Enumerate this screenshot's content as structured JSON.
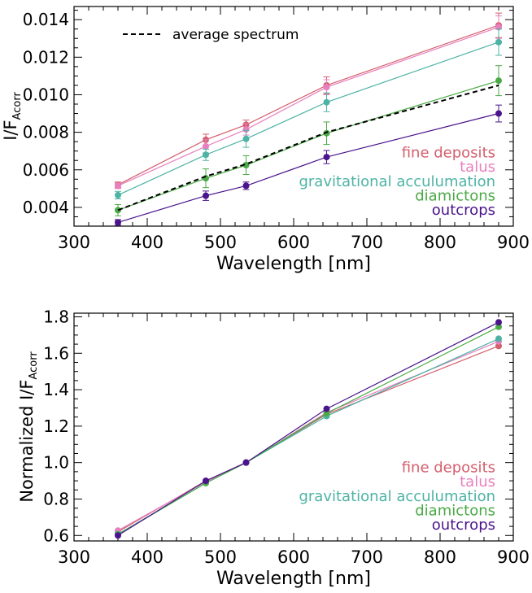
{
  "chart_data": [
    {
      "type": "line",
      "xlabel": "Wavelength [nm]",
      "ylabel": {
        "main": "I/F",
        "sub": "Acorr"
      },
      "xlim": [
        300,
        900
      ],
      "ylim": [
        0.003,
        0.0147
      ],
      "x_ticks": [
        300,
        400,
        500,
        600,
        700,
        800,
        900
      ],
      "y_ticks": [
        0.004,
        0.006,
        0.008,
        0.01,
        0.012,
        0.014
      ],
      "y_tick_labels": [
        "0.004",
        "0.006",
        "0.008",
        "0.010",
        "0.012",
        "0.014"
      ],
      "x": [
        360,
        480,
        535,
        645,
        880
      ],
      "series": [
        {
          "name": "fine deposits",
          "color": "#d45f6d",
          "values": [
            0.0052,
            0.0076,
            0.0084,
            0.0105,
            0.0137
          ],
          "errors": [
            0.00015,
            0.0003,
            0.00025,
            0.00045,
            0.00065
          ]
        },
        {
          "name": "talus",
          "color": "#e87fbe",
          "values": [
            0.00515,
            0.00725,
            0.00815,
            0.0104,
            0.0136
          ],
          "errors": [
            0.00015,
            0.00035,
            0.0003,
            0.0004,
            0.0006
          ]
        },
        {
          "name": "gravitational acculumation",
          "color": "#4db3a4",
          "values": [
            0.00465,
            0.0068,
            0.00765,
            0.0096,
            0.0128
          ],
          "errors": [
            0.0002,
            0.0003,
            0.00045,
            0.0005,
            0.0007
          ]
        },
        {
          "name": "diamictons",
          "color": "#4aaa45",
          "values": [
            0.00385,
            0.00555,
            0.00625,
            0.00795,
            0.01075
          ],
          "errors": [
            0.0003,
            0.0005,
            0.0005,
            0.0006,
            0.0008
          ]
        },
        {
          "name": "outcrops",
          "color": "#4a148c",
          "values": [
            0.0032,
            0.00462,
            0.00515,
            0.00668,
            0.009
          ],
          "errors": [
            0.00015,
            0.00025,
            0.0002,
            0.00035,
            0.00045
          ]
        }
      ],
      "average": {
        "name": "average spectrum",
        "values": [
          0.00385,
          0.00565,
          0.0063,
          0.008,
          0.0105
        ]
      },
      "legend": {
        "position": "bottom-right",
        "average_position": "top-left"
      }
    },
    {
      "type": "line",
      "xlabel": "Wavelength [nm]",
      "ylabel": {
        "main": "Normalized I/F",
        "sub": "Acorr"
      },
      "xlim": [
        300,
        900
      ],
      "ylim": [
        0.57,
        1.82
      ],
      "x_ticks": [
        300,
        400,
        500,
        600,
        700,
        800,
        900
      ],
      "y_ticks": [
        0.6,
        0.8,
        1.0,
        1.2,
        1.4,
        1.6,
        1.8
      ],
      "y_tick_labels": [
        "0.6",
        "0.8",
        "1.0",
        "1.2",
        "1.4",
        "1.6",
        "1.8"
      ],
      "x": [
        360,
        480,
        535,
        645,
        880
      ],
      "series": [
        {
          "name": "fine deposits",
          "color": "#d45f6d",
          "values": [
            0.62,
            0.9,
            1.0,
            1.265,
            1.64
          ]
        },
        {
          "name": "talus",
          "color": "#e87fbe",
          "values": [
            0.627,
            0.895,
            1.0,
            1.275,
            1.665
          ]
        },
        {
          "name": "gravitational acculumation",
          "color": "#4db3a4",
          "values": [
            0.608,
            0.888,
            1.0,
            1.255,
            1.68
          ]
        },
        {
          "name": "diamictons",
          "color": "#4aaa45",
          "values": [
            0.605,
            0.888,
            1.0,
            1.27,
            1.745
          ]
        },
        {
          "name": "outcrops",
          "color": "#4a148c",
          "values": [
            0.6,
            0.9,
            1.0,
            1.295,
            1.77
          ]
        }
      ],
      "legend": {
        "position": "bottom-right"
      }
    }
  ]
}
